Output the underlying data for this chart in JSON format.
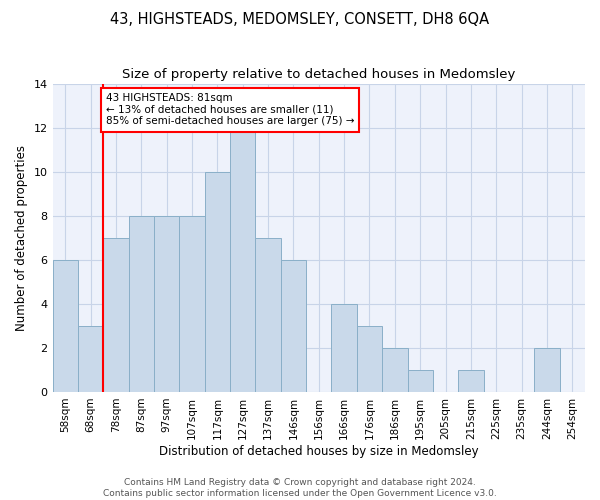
{
  "title": "43, HIGHSTEADS, MEDOMSLEY, CONSETT, DH8 6QA",
  "subtitle": "Size of property relative to detached houses in Medomsley",
  "xlabel": "Distribution of detached houses by size in Medomsley",
  "ylabel": "Number of detached properties",
  "categories": [
    "58sqm",
    "68sqm",
    "78sqm",
    "87sqm",
    "97sqm",
    "107sqm",
    "117sqm",
    "127sqm",
    "137sqm",
    "146sqm",
    "156sqm",
    "166sqm",
    "176sqm",
    "186sqm",
    "195sqm",
    "205sqm",
    "215sqm",
    "225sqm",
    "235sqm",
    "244sqm",
    "254sqm"
  ],
  "values": [
    6,
    3,
    7,
    8,
    8,
    8,
    10,
    12,
    7,
    6,
    0,
    4,
    3,
    2,
    1,
    0,
    1,
    0,
    0,
    2,
    0
  ],
  "bar_color": "#c9d9ea",
  "bar_edge_color": "#8aafc8",
  "red_line_index": 1.5,
  "annotation_text": "43 HIGHSTEADS: 81sqm\n← 13% of detached houses are smaller (11)\n85% of semi-detached houses are larger (75) →",
  "annotation_box_facecolor": "white",
  "annotation_box_edgecolor": "red",
  "red_line_color": "red",
  "ylim": [
    0,
    14
  ],
  "yticks": [
    0,
    2,
    4,
    6,
    8,
    10,
    12,
    14
  ],
  "grid_color": "#c8d4e8",
  "background_color": "#eef2fb",
  "footer_line1": "Contains HM Land Registry data © Crown copyright and database right 2024.",
  "footer_line2": "Contains public sector information licensed under the Open Government Licence v3.0.",
  "title_fontsize": 10.5,
  "subtitle_fontsize": 9.5,
  "xlabel_fontsize": 8.5,
  "ylabel_fontsize": 8.5,
  "tick_fontsize": 7.5,
  "footer_fontsize": 6.5,
  "annotation_fontsize": 7.5
}
